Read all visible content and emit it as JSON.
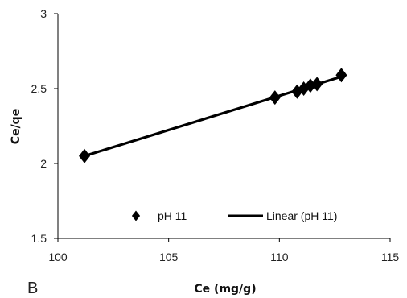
{
  "chart_data": {
    "type": "scatter",
    "title": "",
    "xlabel": "Ce (mg/g)",
    "ylabel": "Ce/qe",
    "panel_label": "B",
    "xlim": [
      100,
      115
    ],
    "ylim": [
      1.5,
      3
    ],
    "x_ticks": [
      "100",
      "105",
      "110",
      "115"
    ],
    "y_ticks": [
      "1.5",
      "2",
      "2.5",
      "3"
    ],
    "grid": false,
    "legend_position": "bottom-inside",
    "colors": {
      "marker": "#000000",
      "line": "#000000"
    },
    "series": [
      {
        "name": "pH 11",
        "kind": "scatter",
        "marker": "diamond",
        "x": [
          101.2,
          109.8,
          110.8,
          111.1,
          111.4,
          111.7,
          112.8
        ],
        "y": [
          2.05,
          2.44,
          2.48,
          2.5,
          2.52,
          2.53,
          2.59
        ]
      },
      {
        "name": "Linear (pH 11)",
        "kind": "line",
        "x": [
          101.2,
          112.8
        ],
        "y": [
          2.05,
          2.58
        ]
      }
    ]
  }
}
